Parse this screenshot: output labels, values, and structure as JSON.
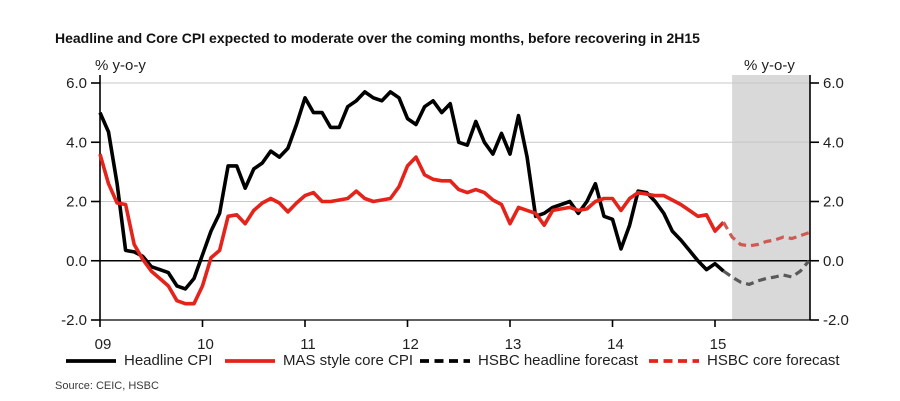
{
  "chart_data": {
    "type": "line",
    "title": "Headline and Core CPI expected to moderate over the coming months, before recovering in 2H15",
    "source": "Source: CEIC, HSBC",
    "ylabel_left": "% y-o-y",
    "ylabel_right": "% y-o-y",
    "ylim": [
      -2.0,
      6.0
    ],
    "grid": "horizontal-light, zero-line-black",
    "legend_position": "bottom",
    "x_unit": "months, Jan 2009 - Dec 2015",
    "y_ticks": {
      "values": [
        6,
        4,
        2,
        0,
        -2
      ],
      "labels": [
        "6.0",
        "4.0",
        "2.0",
        "0.0",
        "-2.0"
      ]
    },
    "x_ticks": {
      "month_indices": [
        0,
        12,
        24,
        36,
        48,
        60,
        72
      ],
      "labels": [
        "09",
        "10",
        "11",
        "12",
        "13",
        "14",
        "15"
      ]
    },
    "forecast_region": {
      "start_month_index": 74,
      "end": "right-axis",
      "fill": "#d9d9d9"
    },
    "colors": {
      "axis": "#000000",
      "gridline": "#c8c8c8",
      "zero_line": "#000000",
      "shade": "#d9d9d9"
    },
    "series": [
      {
        "id": "headline-cpi",
        "name": "Headline CPI",
        "style": "solid",
        "color": "#000000",
        "legend_color": "#000000",
        "start_month_index": 0,
        "values": [
          5.0,
          4.35,
          2.6,
          0.35,
          0.3,
          0.15,
          -0.2,
          -0.3,
          -0.4,
          -0.85,
          -0.95,
          -0.6,
          0.2,
          1.0,
          1.6,
          3.2,
          3.2,
          2.45,
          3.1,
          3.3,
          3.7,
          3.5,
          3.8,
          4.6,
          5.5,
          5.0,
          5.0,
          4.5,
          4.5,
          5.2,
          5.4,
          5.7,
          5.5,
          5.4,
          5.7,
          5.5,
          4.8,
          4.6,
          5.2,
          5.4,
          5.0,
          5.3,
          4.0,
          3.9,
          4.7,
          4.0,
          3.6,
          4.3,
          3.6,
          4.9,
          3.5,
          1.5,
          1.6,
          1.8,
          1.9,
          2.0,
          1.6,
          2.0,
          2.6,
          1.5,
          1.4,
          0.4,
          1.2,
          2.35,
          2.3,
          2.0,
          1.6,
          1.0,
          0.7,
          0.35,
          0.0,
          -0.3,
          -0.1,
          -0.35
        ]
      },
      {
        "id": "mas-core-cpi",
        "name": "MAS style core CPI",
        "style": "solid",
        "color": "#e4231b",
        "legend_color": "#e4231b",
        "start_month_index": 0,
        "values": [
          3.6,
          2.6,
          1.95,
          1.9,
          0.55,
          0.05,
          -0.35,
          -0.6,
          -0.85,
          -1.35,
          -1.45,
          -1.45,
          -0.85,
          0.1,
          0.35,
          1.5,
          1.55,
          1.25,
          1.7,
          1.95,
          2.1,
          1.95,
          1.65,
          1.95,
          2.2,
          2.3,
          2.0,
          2.0,
          2.05,
          2.1,
          2.35,
          2.1,
          2.0,
          2.05,
          2.1,
          2.5,
          3.2,
          3.5,
          2.9,
          2.75,
          2.7,
          2.7,
          2.4,
          2.3,
          2.4,
          2.3,
          2.05,
          1.9,
          1.25,
          1.8,
          1.7,
          1.6,
          1.2,
          1.7,
          1.75,
          1.8,
          1.7,
          1.75,
          2.0,
          2.1,
          2.1,
          1.7,
          2.1,
          2.3,
          2.25,
          2.2,
          2.2,
          2.05,
          1.9,
          1.7,
          1.5,
          1.55,
          1.0,
          1.3
        ]
      },
      {
        "id": "hsbc-headline-forecast",
        "name": "HSBC headline forecast",
        "style": "dashed",
        "color": "#595959",
        "legend_color": "#000000",
        "start_month_index": 73,
        "values": [
          -0.35,
          -0.55,
          -0.72,
          -0.8,
          -0.68,
          -0.6,
          -0.55,
          -0.48,
          -0.55,
          -0.35,
          0.0
        ]
      },
      {
        "id": "hsbc-core-forecast",
        "name": "HSBC core forecast",
        "style": "dashed",
        "color": "#cd5b54",
        "legend_color": "#e4231b",
        "start_month_index": 73,
        "values": [
          1.3,
          0.8,
          0.55,
          0.5,
          0.55,
          0.65,
          0.7,
          0.8,
          0.75,
          0.85,
          0.95
        ]
      }
    ]
  }
}
